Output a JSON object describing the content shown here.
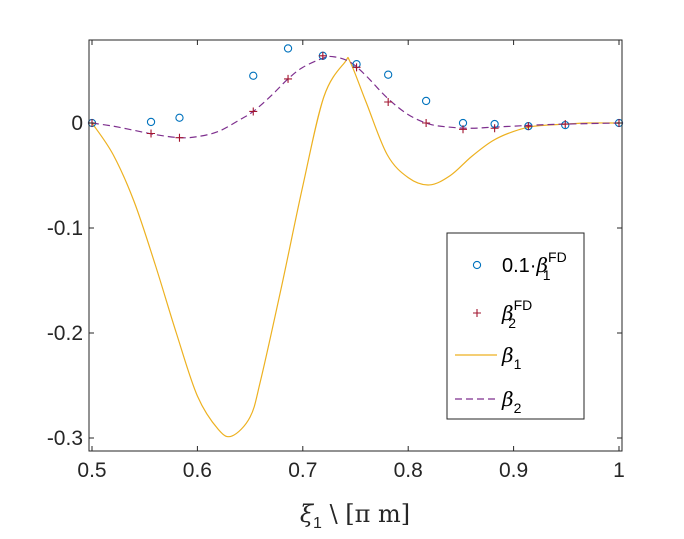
{
  "chart_data": {
    "type": "line",
    "title": "",
    "xlabel": "ξ",
    "xlabel_sub": "1",
    "xlabel_rest": " \\ [π m]",
    "ylabel": "",
    "xlim": [
      0.5,
      1.0
    ],
    "ylim": [
      -0.305,
      0.08
    ],
    "xticks": [
      0.5,
      0.6,
      0.7,
      0.8,
      0.9,
      1.0
    ],
    "xtick_labels": [
      "0.5",
      "0.6",
      "0.7",
      "0.8",
      "0.9",
      "1"
    ],
    "yticks": [
      -0.3,
      -0.2,
      -0.1,
      0.0
    ],
    "ytick_labels": [
      "-0.3",
      "-0.2",
      "-0.1",
      "0"
    ],
    "grid": false,
    "legend_position": "lower-right",
    "series": [
      {
        "name": "0.1·β₁^FD",
        "legend_main": "0.1·",
        "legend_symbol": "β",
        "legend_sub": "1",
        "legend_sup": "FD",
        "style": "circle",
        "color": "#0072BD",
        "x": [
          0.5,
          0.556,
          0.583,
          0.653,
          0.686,
          0.719,
          0.751,
          0.781,
          0.817,
          0.852,
          0.882,
          0.914,
          0.949,
          1.0
        ],
        "y": [
          0.0,
          0.001,
          0.005,
          0.045,
          0.071,
          0.064,
          0.056,
          0.046,
          0.021,
          0.0,
          -0.001,
          -0.003,
          -0.002,
          0.0
        ]
      },
      {
        "name": "β₂^FD",
        "legend_main": "",
        "legend_symbol": "β",
        "legend_sub": "2",
        "legend_sup": "FD",
        "style": "plus",
        "color": "#A2142F",
        "x": [
          0.5,
          0.556,
          0.583,
          0.653,
          0.686,
          0.719,
          0.751,
          0.781,
          0.817,
          0.852,
          0.882,
          0.914,
          0.949,
          1.0
        ],
        "y": [
          0.0,
          -0.01,
          -0.014,
          0.011,
          0.042,
          0.064,
          0.053,
          0.02,
          0.0,
          -0.006,
          -0.005,
          -0.003,
          -0.001,
          0.0
        ]
      },
      {
        "name": "β₁",
        "legend_main": "",
        "legend_symbol": "β",
        "legend_sub": "1",
        "legend_sup": "",
        "style": "solid",
        "color": "#EDB120",
        "x": [
          0.5,
          0.52,
          0.54,
          0.56,
          0.58,
          0.6,
          0.62,
          0.633,
          0.65,
          0.66,
          0.68,
          0.7,
          0.72,
          0.74,
          0.745,
          0.76,
          0.78,
          0.8,
          0.82,
          0.84,
          0.86,
          0.88,
          0.9,
          0.92,
          0.95,
          0.97,
          1.0
        ],
        "y": [
          0.0,
          -0.03,
          -0.075,
          -0.135,
          -0.2,
          -0.26,
          -0.292,
          -0.298,
          -0.28,
          -0.245,
          -0.155,
          -0.06,
          0.025,
          0.058,
          0.058,
          0.02,
          -0.03,
          -0.052,
          -0.059,
          -0.05,
          -0.032,
          -0.017,
          -0.008,
          -0.003,
          -0.001,
          0.0,
          0.0
        ]
      },
      {
        "name": "β₂",
        "legend_main": "",
        "legend_symbol": "β",
        "legend_sub": "2",
        "legend_sup": "",
        "style": "dashed",
        "color": "#7E2F8E",
        "x": [
          0.5,
          0.52,
          0.54,
          0.56,
          0.583,
          0.6,
          0.62,
          0.64,
          0.653,
          0.67,
          0.686,
          0.7,
          0.72,
          0.73,
          0.745,
          0.76,
          0.78,
          0.8,
          0.82,
          0.84,
          0.86,
          0.88,
          0.9,
          0.92,
          0.95,
          1.0
        ],
        "y": [
          0.0,
          -0.003,
          -0.007,
          -0.011,
          -0.014,
          -0.013,
          -0.008,
          0.003,
          0.011,
          0.026,
          0.042,
          0.053,
          0.062,
          0.063,
          0.058,
          0.045,
          0.024,
          0.008,
          -0.001,
          -0.004,
          -0.005,
          -0.004,
          -0.003,
          -0.002,
          -0.001,
          0.0
        ]
      }
    ]
  }
}
